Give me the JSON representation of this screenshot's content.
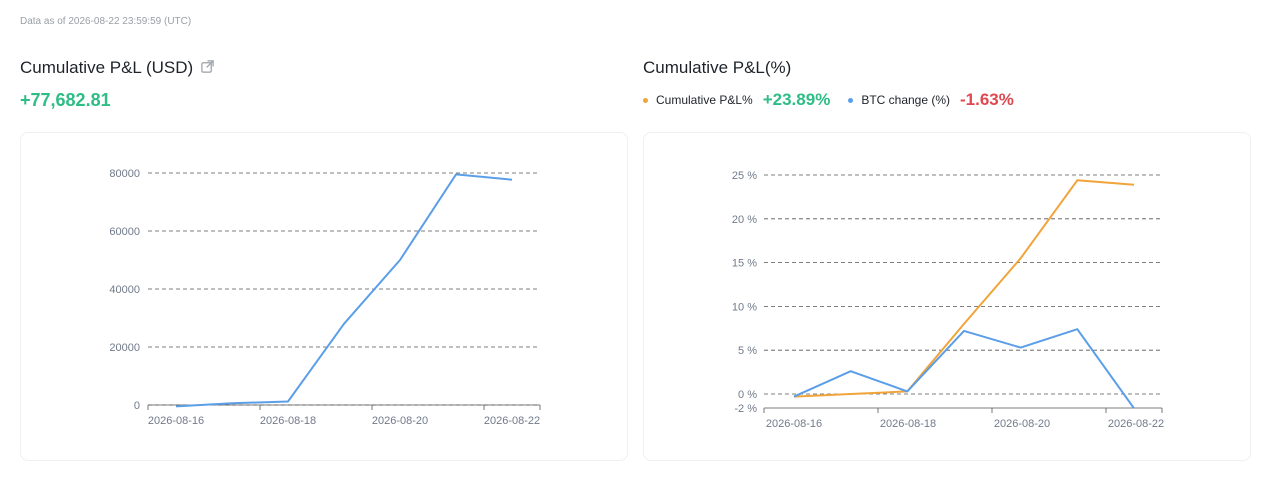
{
  "as_of": "Data as of 2026-08-22 23:59:59 (UTC)",
  "usd_panel": {
    "title": "Cumulative P&L (USD)",
    "value": "+77,682.81"
  },
  "pct_panel": {
    "title": "Cumulative P&L(%)",
    "legend": [
      {
        "label": "Cumulative P&L%",
        "value": "+23.89%",
        "color": "#f0a43a",
        "value_color": "#2ebd85"
      },
      {
        "label": "BTC change (%)",
        "value": "-1.63%",
        "color": "#5b9ee8",
        "value_color": "#e0484f"
      }
    ]
  },
  "colors": {
    "line_blue": "#5b9ee8",
    "line_orange": "#f0a43a",
    "grid": "#555555",
    "positive": "#2ebd85",
    "negative": "#e0484f"
  },
  "chart_data": [
    {
      "type": "line",
      "x": [
        "2026-08-16",
        "2026-08-17",
        "2026-08-18",
        "2026-08-19",
        "2026-08-20",
        "2026-08-21",
        "2026-08-22"
      ],
      "xticks": [
        "2026-08-16",
        "2026-08-18",
        "2026-08-20",
        "2026-08-22"
      ],
      "yticks": [
        "0",
        "20000",
        "40000",
        "60000",
        "80000"
      ],
      "ylim": [
        0,
        80000
      ],
      "grid": true,
      "series": [
        {
          "values": [
            -500,
            600,
            1200,
            28000,
            50000,
            79500,
            77683
          ]
        }
      ]
    },
    {
      "type": "line",
      "x": [
        "2026-08-16",
        "2026-08-17",
        "2026-08-18",
        "2026-08-19",
        "2026-08-20",
        "2026-08-21",
        "2026-08-22"
      ],
      "xticks": [
        "2026-08-16",
        "2026-08-18",
        "2026-08-20",
        "2026-08-22"
      ],
      "yticks": [
        "-2 %",
        "0 %",
        "5 %",
        "10 %",
        "15 %",
        "20 %",
        "25 %"
      ],
      "ylim": [
        -2,
        25
      ],
      "grid": true,
      "series": [
        {
          "name": "Cumulative P&L%",
          "values": [
            -0.3,
            0.0,
            0.3,
            8.0,
            15.5,
            24.4,
            23.89
          ]
        },
        {
          "name": "BTC change (%)",
          "values": [
            -0.3,
            2.6,
            0.3,
            7.2,
            5.3,
            7.4,
            -1.63
          ]
        }
      ]
    }
  ]
}
